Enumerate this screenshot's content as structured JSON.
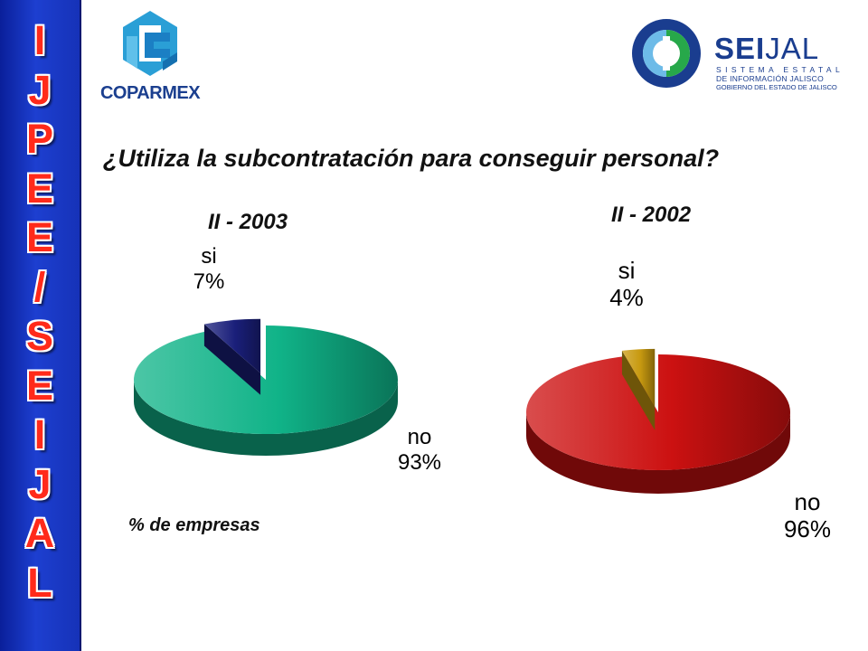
{
  "sidebar": {
    "letters": [
      "I",
      "J",
      "P",
      "E",
      "E",
      "/",
      "S",
      "E",
      "I",
      "J",
      "A",
      "L"
    ]
  },
  "logos": {
    "coparmex": {
      "text": "COPARMEX"
    },
    "seijal": {
      "name_bold": "SEI",
      "name_rest": "JAL",
      "line1": "SISTEMA ESTATAL",
      "line2": "DE INFORMACIÓN JALISCO",
      "line3": "GOBIERNO DEL ESTADO DE JALISCO"
    }
  },
  "question": "¿Utiliza la subcontratación para conseguir personal?",
  "footer": "% de empresas",
  "colors": {
    "sidebar": "#1d3fd0",
    "left_no": "#10b388",
    "left_si": "#1a1f7a",
    "right_no": "#cc1111",
    "right_si": "#c89a10"
  },
  "chart_data": [
    {
      "type": "pie",
      "title": "II - 2003",
      "slices": [
        {
          "label": "si",
          "value": 7,
          "display": "7%"
        },
        {
          "label": "no",
          "value": 93,
          "display": "93%"
        }
      ],
      "unit": "% de empresas"
    },
    {
      "type": "pie",
      "title": "II - 2002",
      "slices": [
        {
          "label": "si",
          "value": 4,
          "display": "4%"
        },
        {
          "label": "no",
          "value": 96,
          "display": "96%"
        }
      ],
      "unit": "% de empresas"
    }
  ]
}
